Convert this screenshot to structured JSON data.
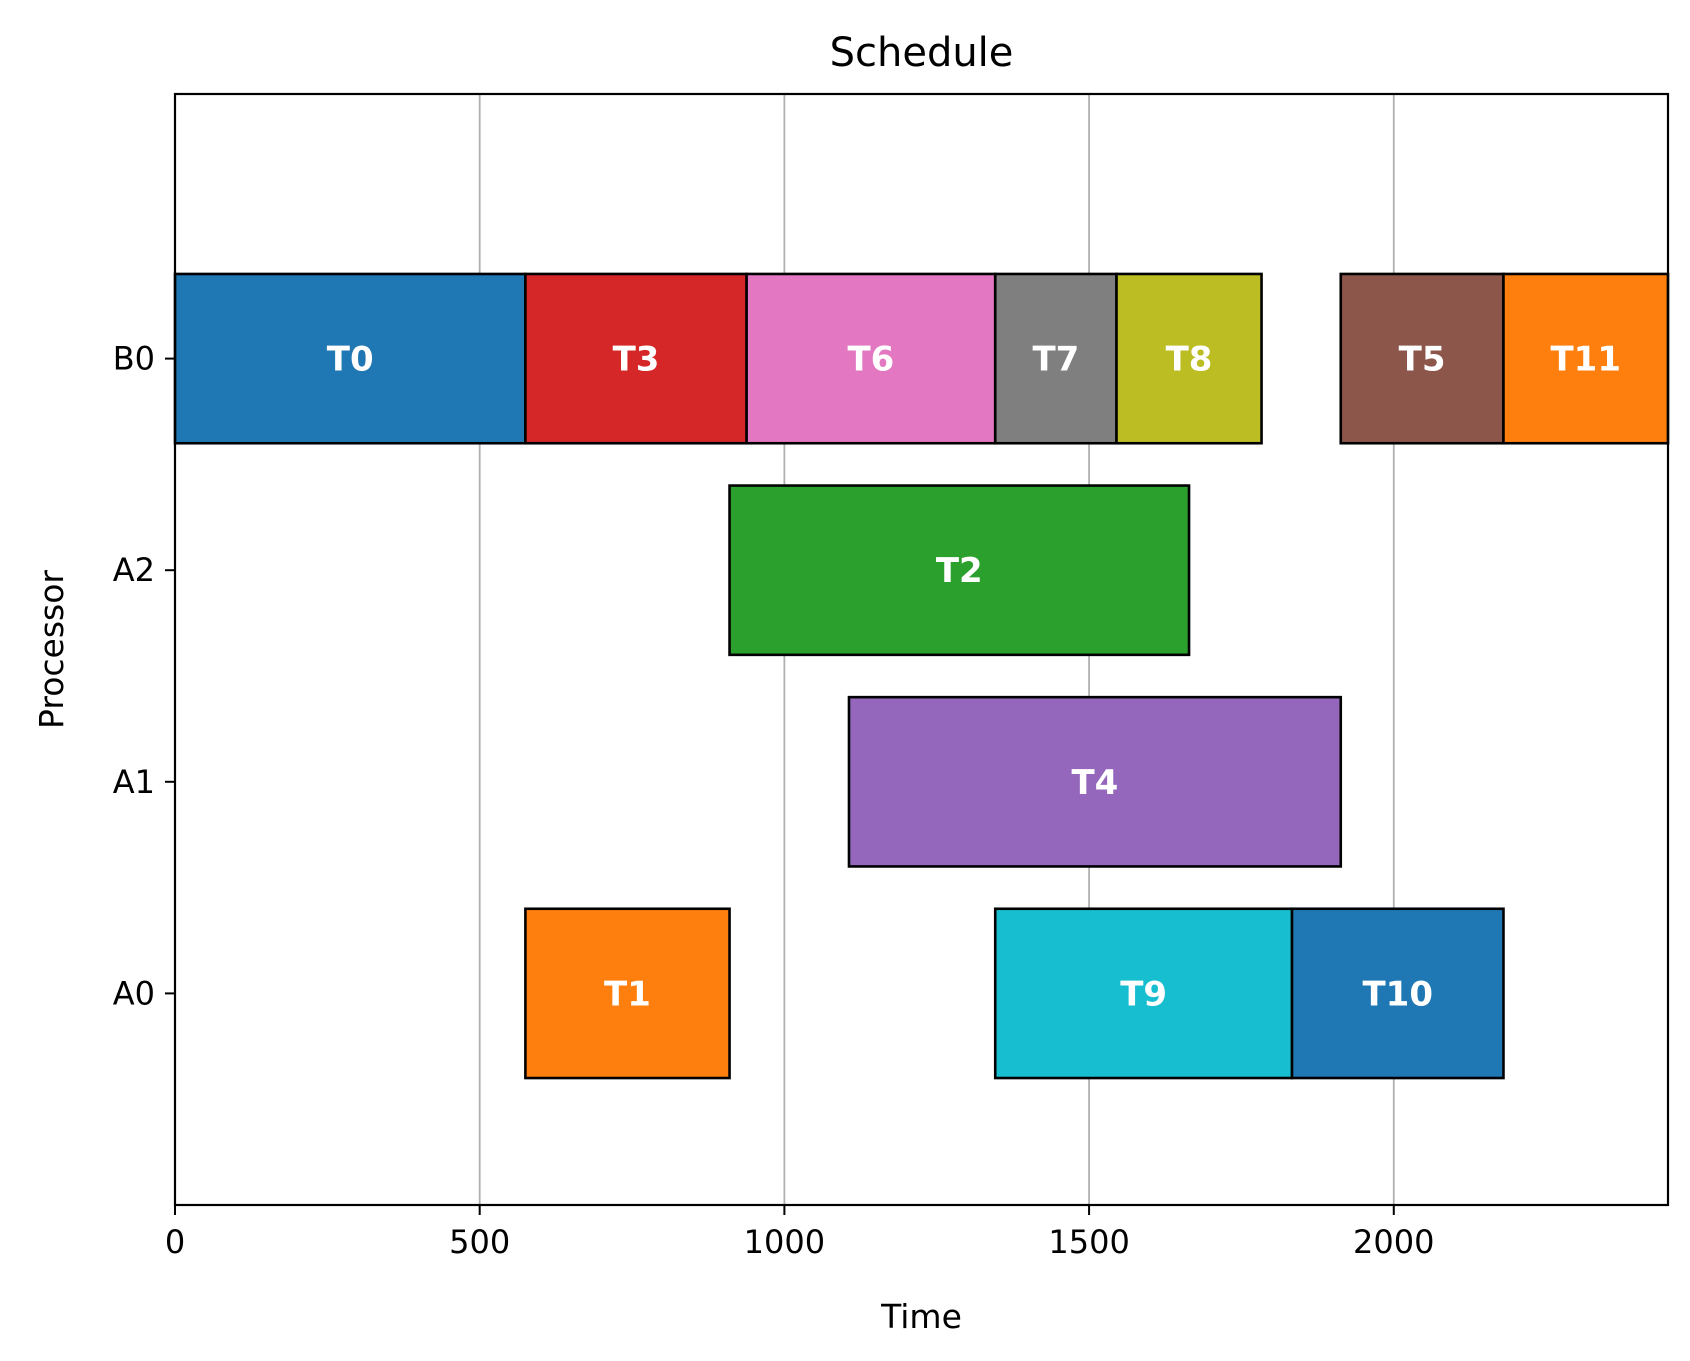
{
  "chart_data": {
    "type": "gantt",
    "title": "Schedule",
    "xlabel": "Time",
    "ylabel": "Processor",
    "xlim": [
      0,
      2450
    ],
    "x_ticks": [
      0,
      500,
      1000,
      1500,
      2000
    ],
    "x_tick_labels": [
      "0",
      "500",
      "1000",
      "1500",
      "2000"
    ],
    "rows": [
      "A0",
      "A1",
      "A2",
      "B0"
    ],
    "grid": "x",
    "tasks": [
      {
        "name": "T0",
        "processor": "B0",
        "start": 0,
        "end": 575,
        "color": "#1f77b4"
      },
      {
        "name": "T3",
        "processor": "B0",
        "start": 575,
        "end": 938,
        "color": "#d62728"
      },
      {
        "name": "T6",
        "processor": "B0",
        "start": 938,
        "end": 1346,
        "color": "#e377c2"
      },
      {
        "name": "T7",
        "processor": "B0",
        "start": 1346,
        "end": 1545,
        "color": "#7f7f7f"
      },
      {
        "name": "T8",
        "processor": "B0",
        "start": 1545,
        "end": 1783,
        "color": "#bcbd22"
      },
      {
        "name": "T5",
        "processor": "B0",
        "start": 1913,
        "end": 2180,
        "color": "#8c564b"
      },
      {
        "name": "T11",
        "processor": "B0",
        "start": 2180,
        "end": 2450,
        "color": "#ff7f0e"
      },
      {
        "name": "T2",
        "processor": "A2",
        "start": 910,
        "end": 1664,
        "color": "#2ca02c"
      },
      {
        "name": "T4",
        "processor": "A1",
        "start": 1106,
        "end": 1913,
        "color": "#9467bd"
      },
      {
        "name": "T1",
        "processor": "A0",
        "start": 575,
        "end": 910,
        "color": "#ff7f0e"
      },
      {
        "name": "T9",
        "processor": "A0",
        "start": 1346,
        "end": 1833,
        "color": "#17becf"
      },
      {
        "name": "T10",
        "processor": "A0",
        "start": 1833,
        "end": 2180,
        "color": "#1f77b4"
      }
    ]
  }
}
